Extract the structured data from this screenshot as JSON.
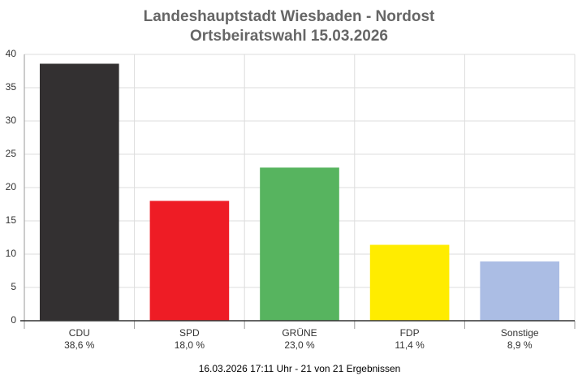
{
  "chart_data": {
    "type": "bar",
    "title": "Landeshauptstadt Wiesbaden - Nordost",
    "subtitle": "Ortsbeiratswahl 15.03.2026",
    "categories": [
      "CDU",
      "SPD",
      "GRÜNE",
      "FDP",
      "Sonstige"
    ],
    "values": [
      38.6,
      18.0,
      23.0,
      11.4,
      8.9
    ],
    "value_labels": [
      "38,6 %",
      "18,0 %",
      "23,0 %",
      "11,4 %",
      "8,9 %"
    ],
    "colors": [
      "#333031",
      "#ee1c25",
      "#57b45f",
      "#ffec00",
      "#abbde4"
    ],
    "ylim": [
      0,
      40
    ],
    "yticks": [
      0,
      5,
      10,
      15,
      20,
      25,
      30,
      35,
      40
    ],
    "grid": true,
    "footnote": "16.03.2026 17:11 Uhr - 21 von 21 Ergebnissen"
  }
}
